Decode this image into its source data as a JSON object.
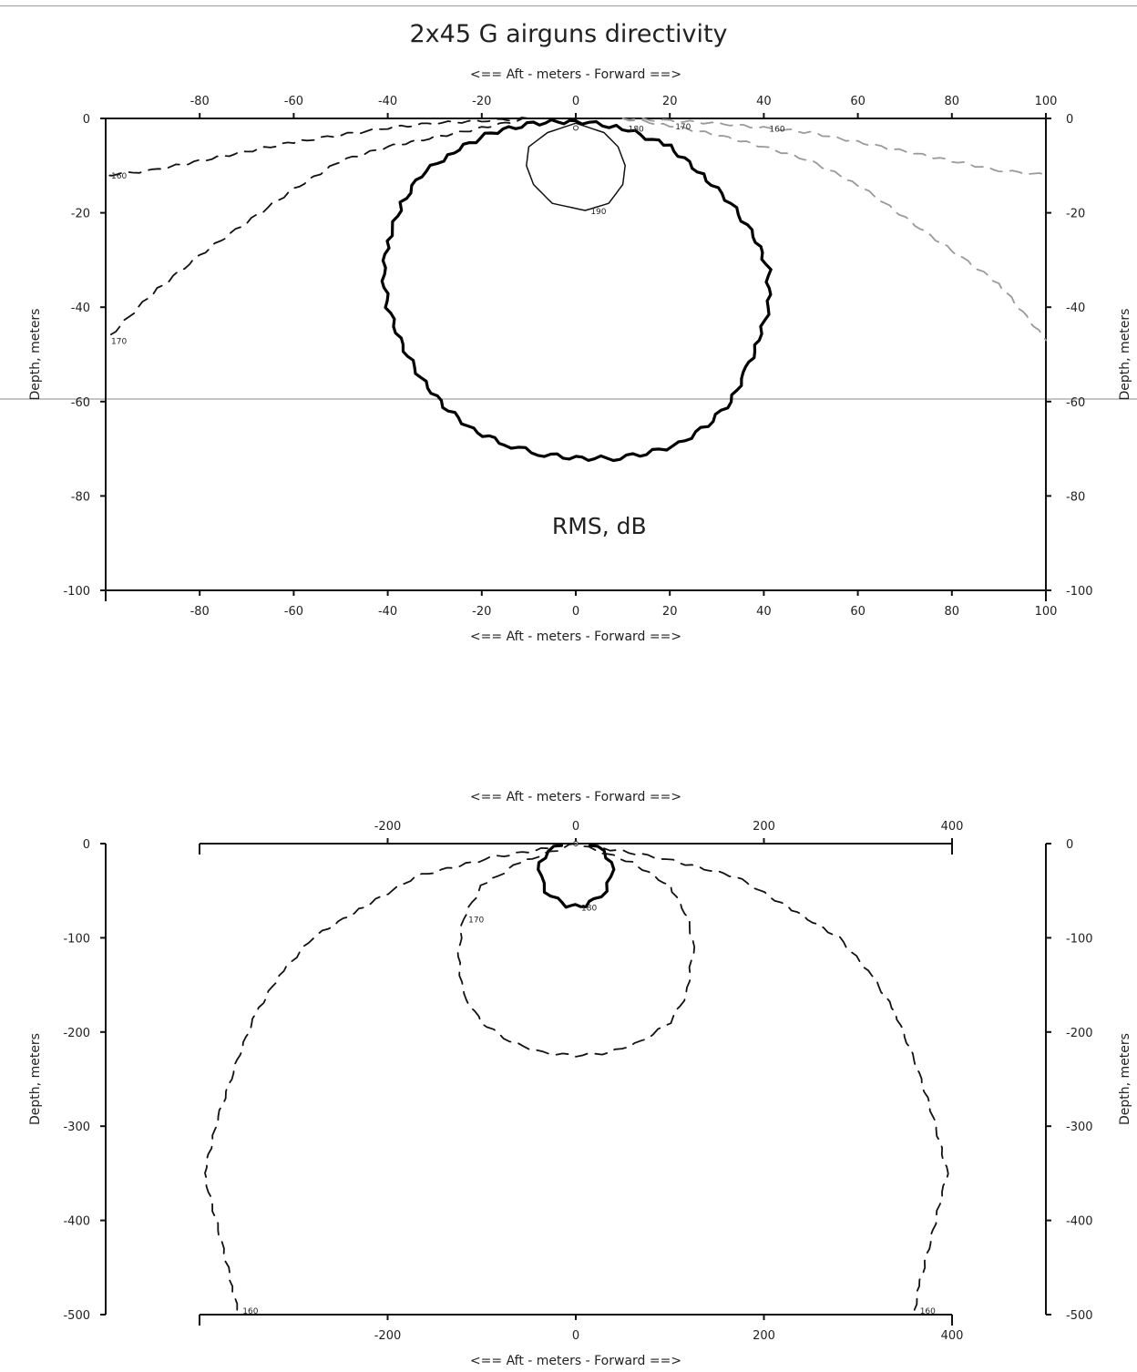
{
  "title": "2x45 G  airguns directivity",
  "chart_data": [
    {
      "type": "line",
      "subtype": "contour",
      "annotation": "RMS, dB",
      "x_axis_label": "<==  Aft  - meters - Forward  ==>",
      "y_axis_label": "Depth, meters",
      "xlim": [
        -100,
        100
      ],
      "ylim": [
        -100,
        0
      ],
      "x_ticks": [
        "-80",
        "-60",
        "-40",
        "-20",
        "0",
        "20",
        "40",
        "60",
        "80",
        "100"
      ],
      "y_ticks": [
        "0",
        "-20",
        "-40",
        "-60",
        "-80",
        "-100"
      ],
      "grid": false,
      "series": [
        {
          "name": "190",
          "style": "solid-thin",
          "color": "#111111",
          "x": [
            0,
            6,
            9,
            10.5,
            10,
            7,
            2,
            -5,
            -9,
            -10.5,
            -10,
            -6,
            0
          ],
          "y": [
            -1,
            -3,
            -6,
            -10,
            -14,
            -18,
            -19.5,
            -18,
            -14,
            -10,
            -6,
            -3,
            -1
          ]
        },
        {
          "name": "180",
          "style": "solid-thick",
          "color": "#000000",
          "x": [
            0,
            10,
            20,
            27,
            33,
            38,
            41,
            41,
            39,
            36,
            33,
            28,
            22,
            15,
            8,
            0,
            -8,
            -15,
            -22,
            -28,
            -33,
            -37,
            -40,
            -41,
            -40,
            -37,
            -33,
            -26,
            -18,
            -9,
            0
          ],
          "y": [
            -0.5,
            -2,
            -6,
            -12,
            -18,
            -25,
            -32,
            -40,
            -47,
            -54,
            -60,
            -65,
            -69,
            -71,
            -72,
            -72,
            -71,
            -69,
            -66,
            -61,
            -55,
            -48,
            -40,
            -33,
            -26,
            -18,
            -12,
            -7,
            -3,
            -1,
            -0.5
          ]
        },
        {
          "name": "170",
          "style": "dashed",
          "color": "#111111",
          "x": [
            -10,
            -20,
            -30,
            -40,
            -50,
            -60,
            -70,
            -80,
            -90,
            -100
          ],
          "y": [
            0,
            -2,
            -4,
            -6,
            -9,
            -15,
            -22,
            -29,
            -37,
            -47
          ]
        },
        {
          "name": "160",
          "style": "dashed",
          "color": "#111111",
          "x": [
            -10,
            -20,
            -30,
            -40,
            -50,
            -60,
            -70,
            -80,
            -90,
            -100
          ],
          "y": [
            0,
            -0.5,
            -1,
            -2,
            -3.5,
            -5,
            -7,
            -9,
            -11,
            -12
          ]
        },
        {
          "name": "170",
          "style": "dashed-gray",
          "color": "#9a9a9a",
          "x": [
            10,
            20,
            30,
            40,
            50,
            60,
            70,
            80,
            90,
            100
          ],
          "y": [
            0,
            -1.5,
            -3.5,
            -6,
            -9,
            -14,
            -21,
            -28,
            -35,
            -47
          ]
        },
        {
          "name": "160",
          "style": "dashed-gray",
          "color": "#9a9a9a",
          "x": [
            10,
            20,
            30,
            40,
            50,
            60,
            70,
            80,
            90,
            100
          ],
          "y": [
            0,
            -0.5,
            -1,
            -2,
            -3,
            -5,
            -7,
            -9,
            -11,
            -12
          ]
        }
      ]
    },
    {
      "type": "line",
      "subtype": "contour",
      "x_axis_label": "<==  Aft  - meters - Forward  ==>",
      "y_axis_label": "Depth, meters",
      "xlim": [
        -400,
        400
      ],
      "ylim": [
        -500,
        0
      ],
      "x_ticks": [
        "-200",
        "0",
        "200",
        "400"
      ],
      "y_ticks": [
        "0",
        "-100",
        "-200",
        "-300",
        "-400",
        "-500"
      ],
      "grid": false,
      "series": [
        {
          "name": "180",
          "style": "solid-thick",
          "color": "#000000",
          "x": [
            -15,
            -30,
            -38,
            -38,
            -32,
            -20,
            -10,
            0,
            10,
            20,
            32,
            38,
            38,
            30,
            15
          ],
          "y": [
            -2,
            -8,
            -20,
            -35,
            -50,
            -60,
            -65,
            -67,
            -65,
            -60,
            -50,
            -35,
            -20,
            -8,
            -2
          ]
        },
        {
          "name": "170",
          "style": "dashed",
          "color": "#111111",
          "x": [
            0,
            -60,
            -100,
            -120,
            -125,
            -120,
            -100,
            -70,
            -35,
            0,
            35,
            70,
            100,
            118,
            125,
            120,
            100,
            60,
            0
          ],
          "y": [
            0,
            -20,
            -45,
            -80,
            -120,
            -160,
            -190,
            -210,
            -222,
            -225,
            -222,
            -210,
            -190,
            -160,
            -110,
            -80,
            -45,
            -20,
            0
          ]
        },
        {
          "name": "160",
          "style": "dashed",
          "color": "#111111",
          "x": [
            -30,
            -90,
            -170,
            -230,
            -280,
            -315,
            -340,
            -360,
            -380,
            -395,
            -385,
            -375,
            -365,
            -360
          ],
          "y": [
            -5,
            -15,
            -35,
            -70,
            -100,
            -140,
            -180,
            -230,
            -290,
            -350,
            -390,
            -430,
            -470,
            -495
          ]
        },
        {
          "name": "160",
          "style": "dashed",
          "color": "#111111",
          "x": [
            30,
            90,
            170,
            230,
            280,
            315,
            340,
            360,
            380,
            395,
            385,
            375,
            365,
            360
          ],
          "y": [
            -5,
            -15,
            -35,
            -70,
            -100,
            -140,
            -180,
            -230,
            -290,
            -350,
            -390,
            -430,
            -470,
            -495
          ]
        }
      ]
    }
  ]
}
